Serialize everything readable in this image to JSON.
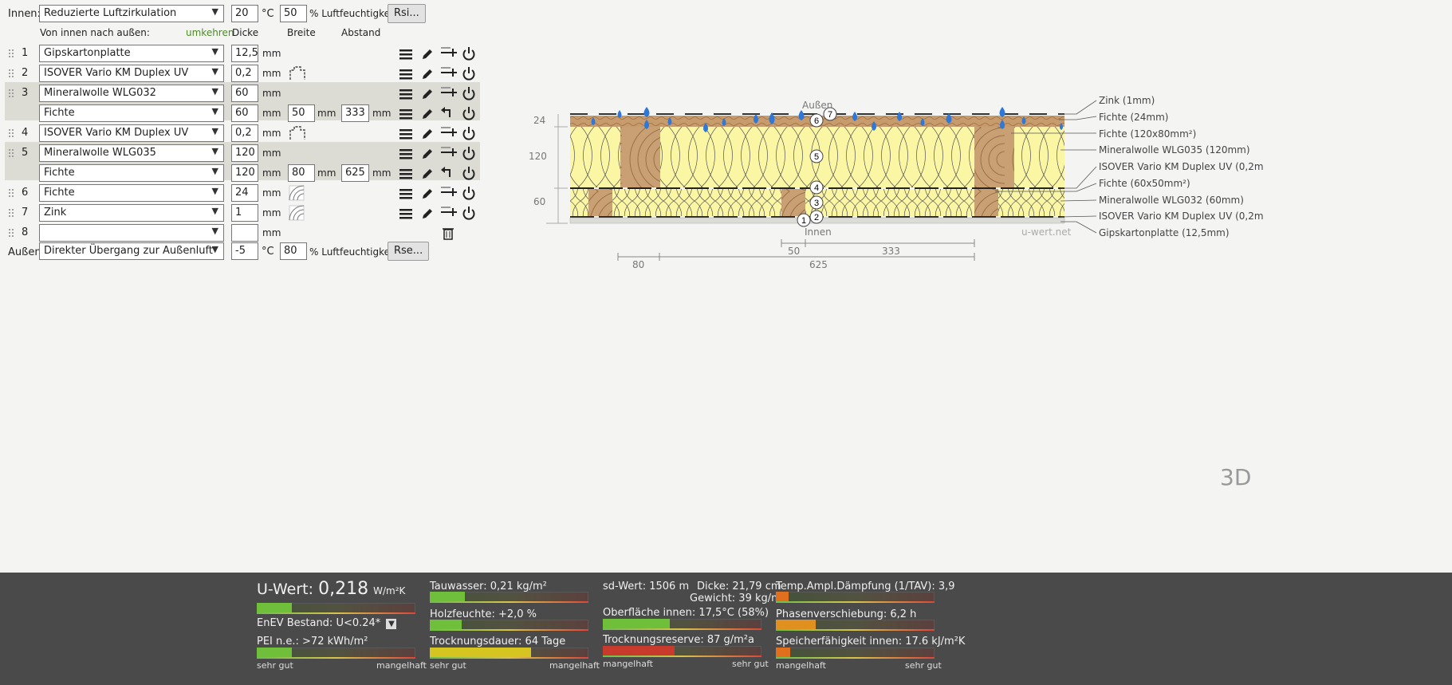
{
  "inside": {
    "label": "Innen:",
    "condition": "Reduzierte Luftzirkulation",
    "temp": "20",
    "temp_unit": "°C",
    "humidity": "50",
    "humidity_label": "% Luftfeuchtigkeit",
    "button": "Rsi..."
  },
  "header": {
    "order_label": "Von innen nach außen:",
    "reverse_link": "umkehren",
    "col_thickness": "Dicke",
    "col_width": "Breite",
    "col_spacing": "Abstand"
  },
  "layers": [
    {
      "num": "1",
      "material": "Gipskartonplatte",
      "thickness": "12,5",
      "unit": "mm"
    },
    {
      "num": "2",
      "material": "ISOVER Vario KM Duplex UV",
      "thickness": "0,2",
      "unit": "mm"
    },
    {
      "num": "3",
      "material": "Mineralwolle WLG032",
      "thickness": "60",
      "unit": "mm",
      "sub": {
        "material": "Fichte",
        "thickness": "60",
        "width": "50",
        "spacing": "333"
      }
    },
    {
      "num": "4",
      "material": "ISOVER Vario KM Duplex UV",
      "thickness": "0,2",
      "unit": "mm"
    },
    {
      "num": "5",
      "material": "Mineralwolle WLG035",
      "thickness": "120",
      "unit": "mm",
      "sub": {
        "material": "Fichte",
        "thickness": "120",
        "width": "80",
        "spacing": "625"
      }
    },
    {
      "num": "6",
      "material": "Fichte",
      "thickness": "24",
      "unit": "mm"
    },
    {
      "num": "7",
      "material": "Zink",
      "thickness": "1",
      "unit": "mm"
    },
    {
      "num": "8",
      "material": "",
      "thickness": "",
      "unit": "mm"
    }
  ],
  "mm": "mm",
  "outside": {
    "label": "Außen:",
    "condition": "Direkter Übergang zur Außenluft",
    "temp": "-5",
    "temp_unit": "°C",
    "humidity": "80",
    "humidity_label": "% Luftfeuchtigkeit",
    "button": "Rse..."
  },
  "diagram": {
    "label_outside": "Außen",
    "label_inside": "Innen",
    "watermark": "u-wert.net",
    "dim_24": "24",
    "dim_120": "120",
    "dim_60": "60",
    "dim_50": "50",
    "dim_333": "333",
    "dim_80": "80",
    "dim_625": "625",
    "legend": [
      "Zink (1mm)",
      "Fichte (24mm)",
      "Fichte (120x80mm²)",
      "Mineralwolle WLG035 (120mm)",
      "ISOVER Vario KM Duplex UV (0,2m",
      "Fichte (60x50mm²)",
      "Mineralwolle WLG032 (60mm)",
      "ISOVER Vario KM Duplex UV (0,2m",
      "Gipskartonplatte (12,5mm)"
    ],
    "three_d": "3D"
  },
  "results": {
    "u_label": "U-Wert:",
    "u_value": "0,218",
    "u_unit": "W/m²K",
    "u_level": 0.22,
    "enev": "EnEV Bestand: U<0.24*",
    "pei": "PEI n.e.: >72 kWh/m²",
    "pei_level": 0.22,
    "tauwasser": "Tauwasser: 0,21 kg/m²",
    "tauwasser_level": 0.22,
    "holzfeuchte": "Holzfeuchte: +2,0 %",
    "holzfeuchte_level": 0.2,
    "trocknungsdauer": "Trocknungsdauer: 64 Tage",
    "trocknungsdauer_level": 0.64,
    "sd_wert": "sd-Wert: 1506 m",
    "dicke": "Dicke: 21,79 cm",
    "gewicht": "Gewicht: 39 kg/m²",
    "oberflaeche": "Oberfläche innen: 17,5°C (58%)",
    "oberflaeche_level": 0.42,
    "trocknungsreserve": "Trocknungsreserve: 87 g/m²a",
    "trocknungsreserve_level": 0.45,
    "tav": "Temp.Ampl.Dämpfung (1/TAV): 3,9",
    "tav_level": 0.08,
    "phase": "Phasenverschiebung: 6,2 h",
    "phase_level": 0.25,
    "speicher": "Speicherfähigkeit innen: 17.6 kJ/m²K",
    "speicher_level": 0.09,
    "scale_good": "sehr gut",
    "scale_bad": "mangelhaft"
  }
}
